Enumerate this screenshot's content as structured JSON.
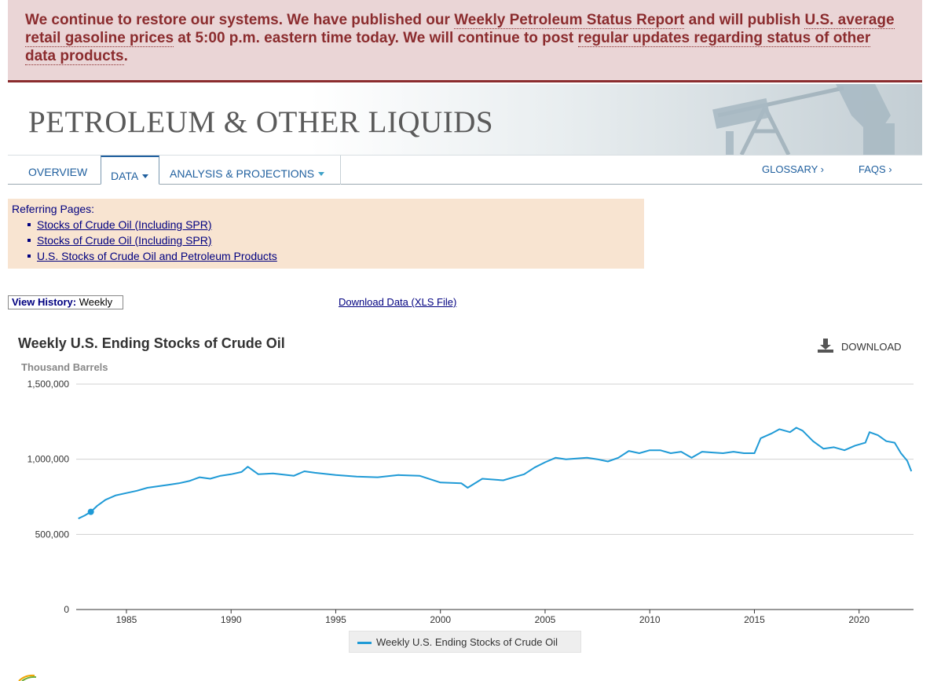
{
  "alert": {
    "t1": "We continue to restore our systems. We have published our ",
    "link1": "Weekly Petroleum Status Report",
    "t2": " and will publish ",
    "link2": "U.S. average retail gasoline prices",
    "t3": " at 5:00 p.m. eastern time today. We will continue to post ",
    "link3": "regular updates regarding status of other data products",
    "t4": "."
  },
  "header": {
    "title": "PETROLEUM & OTHER LIQUIDS"
  },
  "nav": {
    "overview": "OVERVIEW",
    "data": "DATA",
    "analysis": "ANALYSIS & PROJECTIONS",
    "glossary": "GLOSSARY ›",
    "faqs": "FAQS ›"
  },
  "referring": {
    "label": "Referring Pages:",
    "items": [
      "Stocks of Crude Oil (Including SPR)",
      "Stocks of Crude Oil (Including SPR)",
      "U.S. Stocks of Crude Oil and Petroleum Products"
    ]
  },
  "history": {
    "label": "View History:",
    "value": "Weekly"
  },
  "download_data": "Download Data (XLS File)",
  "chart_header": {
    "download": "DOWNLOAD"
  },
  "chart_data": {
    "type": "line",
    "title": "Weekly U.S. Ending Stocks of Crude Oil",
    "ylabel": "Thousand Barrels",
    "xlabel": "",
    "xlim": [
      1982.6,
      2022.6
    ],
    "ylim": [
      0,
      1500000
    ],
    "y_ticks": [
      "0",
      "500,000",
      "1,000,000",
      "1,500,000"
    ],
    "y_tick_values": [
      0,
      500000,
      1000000,
      1500000
    ],
    "x_ticks": [
      "1985",
      "1990",
      "1995",
      "2000",
      "2005",
      "2010",
      "2015",
      "2020"
    ],
    "x_tick_values": [
      1985,
      1990,
      1995,
      2000,
      2005,
      2010,
      2015,
      2020
    ],
    "grid": true,
    "legend_position": "bottom-center",
    "color": "#1f9ad6",
    "series": [
      {
        "name": "Weekly U.S. Ending Stocks of Crude Oil",
        "x": [
          1982.7,
          1983.0,
          1983.3,
          1983.6,
          1984.0,
          1984.5,
          1985.0,
          1985.5,
          1986.0,
          1986.5,
          1987.0,
          1987.5,
          1988.0,
          1988.5,
          1989.0,
          1989.5,
          1990.0,
          1990.5,
          1990.8,
          1991.3,
          1992.0,
          1993.0,
          1993.5,
          1994.0,
          1995.0,
          1996.0,
          1997.0,
          1998.0,
          1999.0,
          2000.0,
          2001.0,
          2001.3,
          2002.0,
          2003.0,
          2003.5,
          2004.0,
          2004.5,
          2005.0,
          2005.5,
          2006.0,
          2007.0,
          2007.5,
          2008.0,
          2008.5,
          2009.0,
          2009.5,
          2010.0,
          2010.5,
          2011.0,
          2011.5,
          2012.0,
          2012.5,
          2013.0,
          2013.5,
          2014.0,
          2014.5,
          2015.0,
          2015.3,
          2015.8,
          2016.2,
          2016.7,
          2017.0,
          2017.3,
          2017.8,
          2018.3,
          2018.8,
          2019.3,
          2019.8,
          2020.3,
          2020.5,
          2020.9,
          2021.3,
          2021.7,
          2022.0,
          2022.3,
          2022.5
        ],
        "values": [
          605000,
          625000,
          650000,
          690000,
          730000,
          760000,
          775000,
          790000,
          810000,
          820000,
          830000,
          840000,
          855000,
          880000,
          870000,
          890000,
          900000,
          915000,
          950000,
          900000,
          905000,
          890000,
          920000,
          910000,
          895000,
          885000,
          880000,
          895000,
          890000,
          845000,
          840000,
          810000,
          870000,
          860000,
          880000,
          900000,
          945000,
          980000,
          1010000,
          1000000,
          1010000,
          1000000,
          985000,
          1010000,
          1055000,
          1040000,
          1060000,
          1060000,
          1040000,
          1050000,
          1010000,
          1050000,
          1045000,
          1040000,
          1050000,
          1040000,
          1040000,
          1140000,
          1170000,
          1200000,
          1180000,
          1210000,
          1190000,
          1120000,
          1070000,
          1080000,
          1060000,
          1090000,
          1110000,
          1180000,
          1160000,
          1120000,
          1110000,
          1040000,
          990000,
          920000
        ]
      }
    ]
  }
}
